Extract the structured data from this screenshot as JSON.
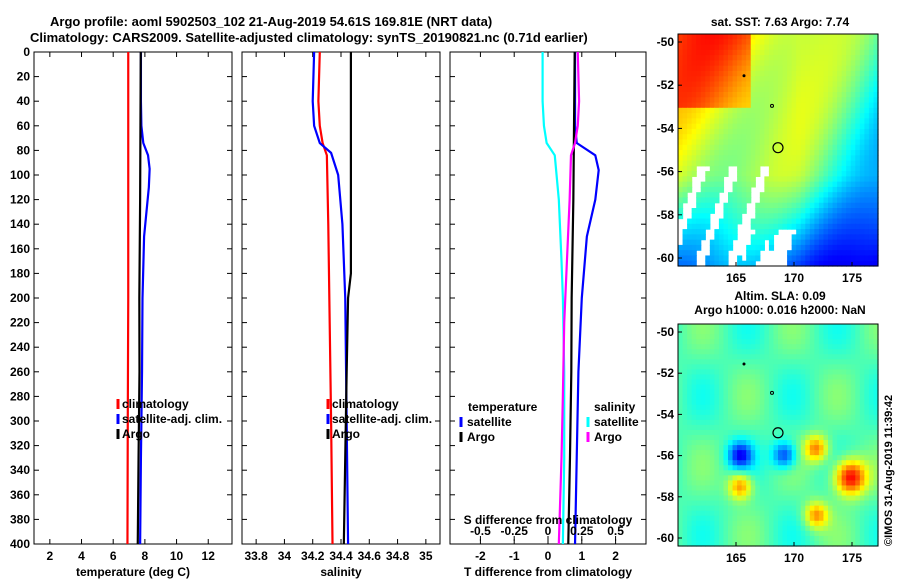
{
  "figure": {
    "title_line1": "Argo profile: aoml 5902503_102 21-Aug-2019 54.61S 169.81E (NRT data)",
    "title_line2": "Climatology: CARS2009. Satellite-adjusted climatology: synTS_20190821.nc (0.71d earlier)",
    "credit": "©IMOS 31-Aug-2019 11:39:42",
    "colors": {
      "climatology": "#ff0000",
      "satellite": "#0000ff",
      "argo": "#000000",
      "t_sat_diff": "#00ffff",
      "s_diff": "#ff00ff",
      "t_diff_argo": "#000000"
    }
  },
  "depth_axis": {
    "ticks": [
      0,
      20,
      40,
      60,
      80,
      100,
      120,
      140,
      160,
      180,
      200,
      220,
      240,
      260,
      280,
      300,
      320,
      340,
      360,
      380,
      400
    ],
    "range": [
      0,
      400
    ]
  },
  "chart_data": [
    {
      "id": "temperature",
      "type": "line",
      "xlabel": "temperature (deg C)",
      "xlim": [
        1,
        13.5
      ],
      "xticks": [
        2,
        4,
        6,
        8,
        10,
        12
      ],
      "ylim": [
        400,
        0
      ],
      "legend": [
        "climatology",
        "satellite-adj. clim.",
        "Argo"
      ],
      "series": [
        {
          "name": "climatology",
          "color": "#ff0000",
          "points": [
            [
              6.95,
              0
            ],
            [
              6.95,
              60
            ],
            [
              6.95,
              100
            ],
            [
              6.95,
              200
            ],
            [
              6.92,
              300
            ],
            [
              6.9,
              400
            ]
          ]
        },
        {
          "name": "satellite-adj. clim.",
          "color": "#0000ff",
          "points": [
            [
              7.75,
              0
            ],
            [
              7.75,
              40
            ],
            [
              7.78,
              60
            ],
            [
              7.9,
              74
            ],
            [
              8.2,
              84
            ],
            [
              8.3,
              95
            ],
            [
              8.25,
              110
            ],
            [
              8.1,
              130
            ],
            [
              7.95,
              150
            ],
            [
              7.85,
              200
            ],
            [
              7.82,
              260
            ],
            [
              7.75,
              330
            ],
            [
              7.7,
              400
            ]
          ]
        },
        {
          "name": "Argo",
          "color": "#000000",
          "points": [
            [
              7.74,
              0
            ],
            [
              7.72,
              60
            ],
            [
              7.7,
              120
            ],
            [
              7.65,
              200
            ],
            [
              7.66,
              260
            ],
            [
              7.6,
              330
            ],
            [
              7.55,
              400
            ]
          ]
        }
      ]
    },
    {
      "id": "salinity",
      "type": "line",
      "xlabel": "salinity",
      "xlim": [
        33.7,
        35.1
      ],
      "xticks": [
        33.8,
        34,
        34.2,
        34.4,
        34.6,
        34.8,
        35
      ],
      "xtick_labels": [
        "33.8",
        "34",
        "34.2",
        "34.4",
        "34.6",
        "34.8",
        "35"
      ],
      "ylim": [
        400,
        0
      ],
      "legend": [
        "climatology",
        "satellite-adj. clim.",
        "Argo"
      ],
      "series": [
        {
          "name": "climatology",
          "color": "#ff0000",
          "points": [
            [
              34.25,
              0
            ],
            [
              34.24,
              40
            ],
            [
              34.25,
              60
            ],
            [
              34.27,
              74
            ],
            [
              34.3,
              84
            ],
            [
              34.31,
              140
            ],
            [
              34.32,
              220
            ],
            [
              34.33,
              300
            ],
            [
              34.34,
              400
            ]
          ]
        },
        {
          "name": "satellite-adj. clim.",
          "color": "#0000ff",
          "points": [
            [
              34.21,
              0
            ],
            [
              34.2,
              40
            ],
            [
              34.21,
              60
            ],
            [
              34.25,
              74
            ],
            [
              34.33,
              82
            ],
            [
              34.38,
              100
            ],
            [
              34.41,
              140
            ],
            [
              34.43,
              200
            ],
            [
              34.44,
              300
            ],
            [
              34.45,
              400
            ]
          ]
        },
        {
          "name": "Argo",
          "color": "#000000",
          "points": [
            [
              34.47,
              0
            ],
            [
              34.47,
              100
            ],
            [
              34.47,
              180
            ],
            [
              34.45,
              200
            ],
            [
              34.44,
              260
            ],
            [
              34.43,
              330
            ],
            [
              34.42,
              400
            ]
          ]
        }
      ]
    },
    {
      "id": "difference",
      "type": "line",
      "xlabel": "T difference from climatology",
      "xlim": [
        -2.9,
        2.9
      ],
      "xticks": [
        -2,
        -1,
        0,
        1,
        2
      ],
      "xtick_labels": [
        "-2",
        "-1",
        "0",
        "1",
        "2"
      ],
      "s_axis_label": "S difference from climatology",
      "s_ticks": [
        -0.5,
        -0.25,
        0,
        0.25,
        0.5
      ],
      "s_tick_labels": [
        "-0.5",
        "-0.25",
        "0",
        "0.25",
        "0.5"
      ],
      "s_xlim": [
        -0.725,
        0.725
      ],
      "ylim": [
        400,
        0
      ],
      "legend_temperature": {
        "title": "temperature",
        "items": [
          "satellite",
          "Argo"
        ]
      },
      "legend_salinity": {
        "title": "salinity",
        "items": [
          "satellite",
          "Argo"
        ]
      },
      "series": [
        {
          "name": "T satellite",
          "color": "#0000ff",
          "points": [
            [
              0.8,
              0
            ],
            [
              0.8,
              60
            ],
            [
              0.85,
              74
            ],
            [
              1.4,
              84
            ],
            [
              1.5,
              96
            ],
            [
              1.4,
              120
            ],
            [
              1.15,
              150
            ],
            [
              1.0,
              200
            ],
            [
              0.9,
              260
            ],
            [
              0.85,
              330
            ],
            [
              0.8,
              400
            ]
          ]
        },
        {
          "name": "T Argo",
          "color": "#000000",
          "points": [
            [
              0.79,
              0
            ],
            [
              0.77,
              60
            ],
            [
              0.75,
              120
            ],
            [
              0.7,
              200
            ],
            [
              0.69,
              260
            ],
            [
              0.65,
              330
            ],
            [
              0.6,
              400
            ]
          ]
        },
        {
          "name": "S satellite",
          "color": "#00ffff",
          "points": [
            [
              -0.04,
              0
            ],
            [
              -0.04,
              40
            ],
            [
              -0.03,
              60
            ],
            [
              -0.01,
              74
            ],
            [
              0.05,
              84
            ],
            [
              0.08,
              120
            ],
            [
              0.1,
              170
            ],
            [
              0.11,
              200
            ],
            [
              0.12,
              260
            ],
            [
              0.12,
              330
            ],
            [
              0.11,
              400
            ]
          ]
        },
        {
          "name": "S Argo",
          "color": "#ff00ff",
          "points": [
            [
              0.22,
              0
            ],
            [
              0.23,
              40
            ],
            [
              0.22,
              60
            ],
            [
              0.2,
              74
            ],
            [
              0.17,
              84
            ],
            [
              0.16,
              120
            ],
            [
              0.14,
              170
            ],
            [
              0.12,
              220
            ],
            [
              0.11,
              280
            ],
            [
              0.1,
              330
            ],
            [
              0.08,
              400
            ]
          ]
        }
      ]
    }
  ],
  "maps": [
    {
      "id": "sst",
      "title": "sat. SST: 7.63 Argo: 7.74",
      "yticks": [
        "-50",
        "-52",
        "-54",
        "-56",
        "-58",
        "-60"
      ],
      "xticks": [
        "165",
        "170",
        "175"
      ]
    },
    {
      "id": "sla",
      "title_line1": "Altim. SLA: 0.09",
      "title_line2": "Argo h1000: 0.016 h2000: NaN",
      "yticks": [
        "-50",
        "-52",
        "-54",
        "-56",
        "-58",
        "-60"
      ],
      "xticks": [
        "165",
        "170",
        "175"
      ]
    }
  ]
}
